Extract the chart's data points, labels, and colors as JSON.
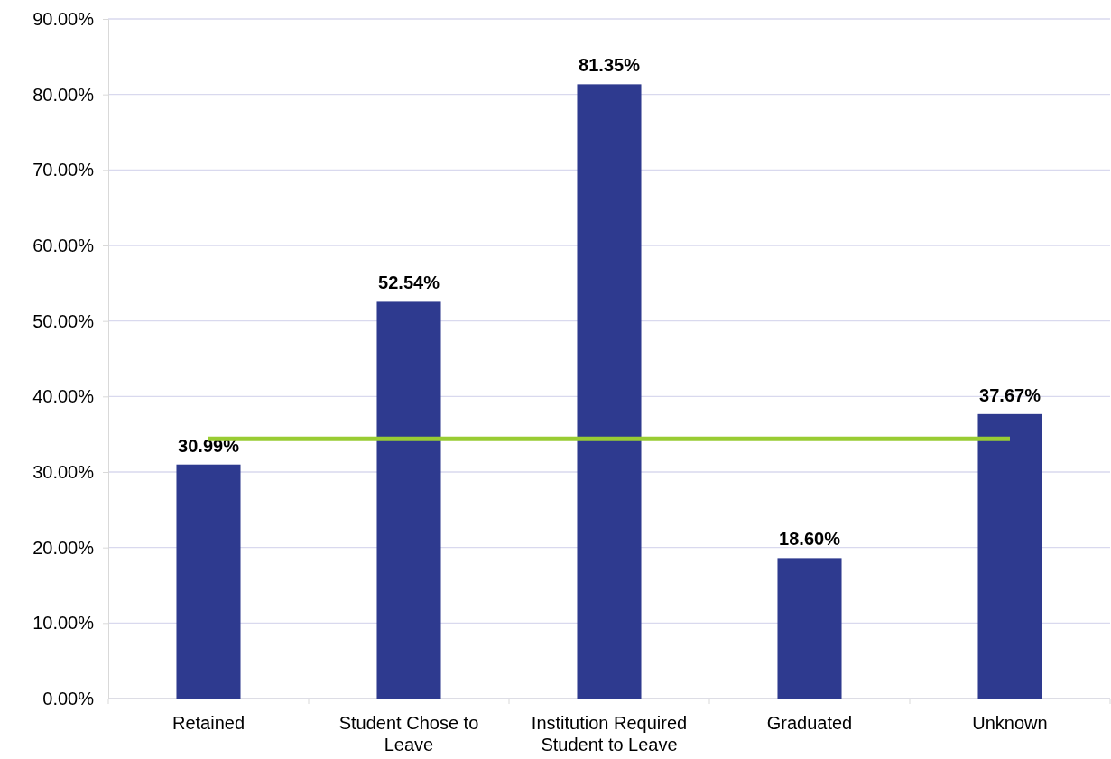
{
  "chart_data": {
    "type": "bar",
    "categories": [
      "Retained",
      "Student Chose to Leave",
      "Institution Required Student to Leave",
      "Graduated",
      "Unknown"
    ],
    "series": [
      {
        "color": "#2e3a8f",
        "values": [
          30.99,
          52.54,
          81.35,
          18.6,
          37.67
        ],
        "value_labels": [
          "30.99%",
          "52.54%",
          "81.35%",
          "18.60%",
          "37.67%"
        ]
      },
      {
        "type": "line",
        "color": "#99cc33",
        "values": [
          34.4,
          34.4,
          34.4,
          34.4,
          34.4
        ],
        "marker": "none",
        "line_style": "solid"
      }
    ],
    "ylim": [
      0,
      90
    ],
    "yticks": [
      {
        "value": 0,
        "label": "0.00%"
      },
      {
        "value": 10,
        "label": "10.00%"
      },
      {
        "value": 20,
        "label": "20.00%"
      },
      {
        "value": 30,
        "label": "30.00%"
      },
      {
        "value": 40,
        "label": "40.00%"
      },
      {
        "value": 50,
        "label": "50.00%"
      },
      {
        "value": 60,
        "label": "60.00%"
      },
      {
        "value": 70,
        "label": "70.00%"
      },
      {
        "value": 80,
        "label": "80.00%"
      },
      {
        "value": 90,
        "label": "90.00%"
      }
    ],
    "grid": "y"
  }
}
